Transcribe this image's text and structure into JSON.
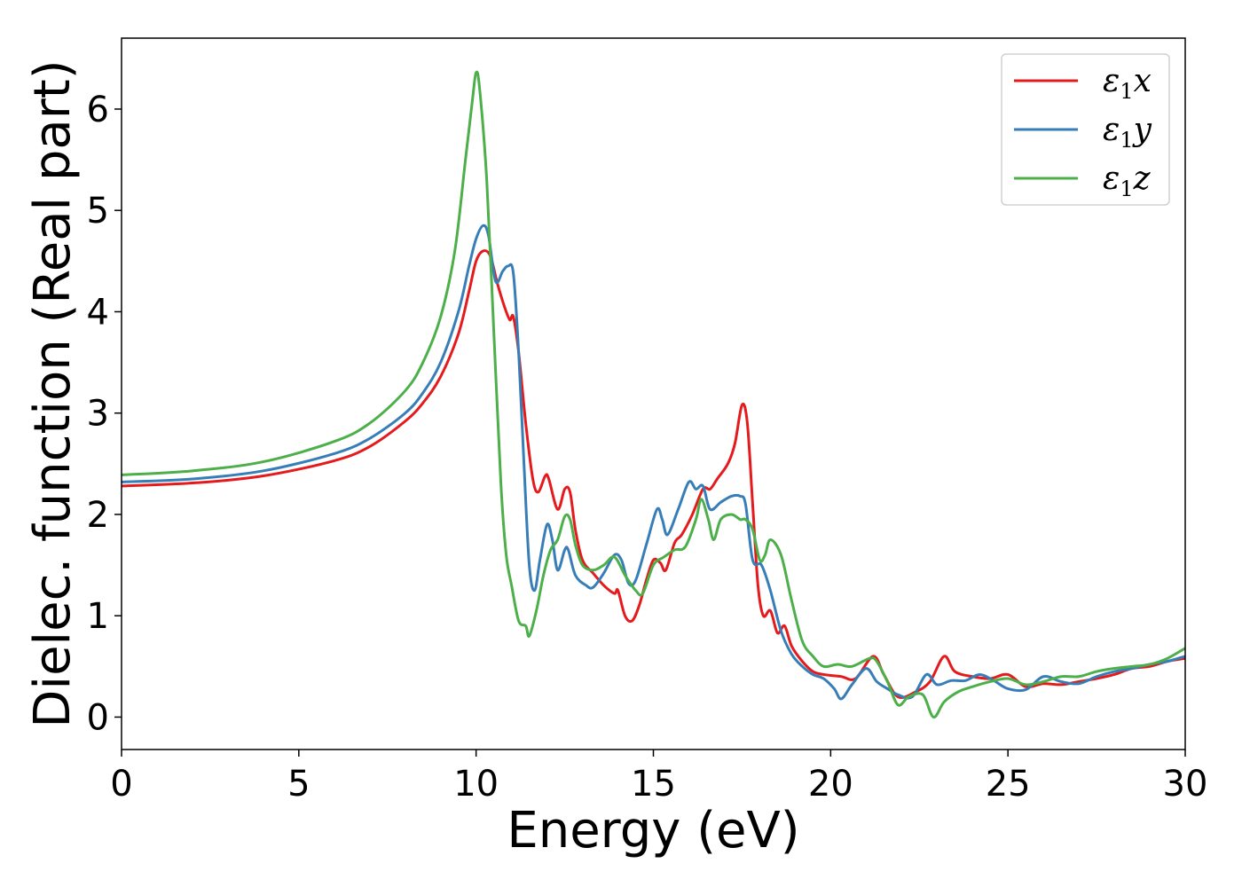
{
  "chart_data": {
    "type": "line",
    "xlabel": "Energy (eV)",
    "ylabel": "Dielec. function (Real part)",
    "xlim": [
      0,
      30
    ],
    "ylim": [
      -0.32,
      6.7
    ],
    "xticks": [
      0,
      5,
      10,
      15,
      20,
      25,
      30
    ],
    "yticks": [
      0,
      1,
      2,
      3,
      4,
      5,
      6
    ],
    "grid": false,
    "legend_position": "top-right",
    "series": [
      {
        "name": "ε1x",
        "legend": {
          "symbol": "ε",
          "sub": "1",
          "var": "x"
        },
        "color": "#e41a1c",
        "points": [
          [
            0,
            2.28
          ],
          [
            2,
            2.31
          ],
          [
            4,
            2.38
          ],
          [
            6,
            2.53
          ],
          [
            7,
            2.67
          ],
          [
            8,
            2.92
          ],
          [
            8.5,
            3.1
          ],
          [
            9,
            3.36
          ],
          [
            9.5,
            3.78
          ],
          [
            9.8,
            4.2
          ],
          [
            10,
            4.5
          ],
          [
            10.2,
            4.6
          ],
          [
            10.4,
            4.55
          ],
          [
            10.6,
            4.28
          ],
          [
            10.8,
            4.05
          ],
          [
            10.95,
            3.92
          ],
          [
            11.05,
            3.95
          ],
          [
            11.2,
            3.6
          ],
          [
            11.4,
            2.9
          ],
          [
            11.6,
            2.35
          ],
          [
            11.75,
            2.22
          ],
          [
            11.95,
            2.38
          ],
          [
            12.05,
            2.35
          ],
          [
            12.3,
            2.05
          ],
          [
            12.5,
            2.25
          ],
          [
            12.65,
            2.22
          ],
          [
            12.8,
            1.85
          ],
          [
            13,
            1.55
          ],
          [
            13.3,
            1.42
          ],
          [
            13.6,
            1.3
          ],
          [
            13.9,
            1.22
          ],
          [
            14,
            1.25
          ],
          [
            14.2,
            1.0
          ],
          [
            14.4,
            0.95
          ],
          [
            14.6,
            1.1
          ],
          [
            14.8,
            1.35
          ],
          [
            15,
            1.55
          ],
          [
            15.2,
            1.52
          ],
          [
            15.35,
            1.45
          ],
          [
            15.6,
            1.72
          ],
          [
            15.8,
            1.8
          ],
          [
            16.1,
            2.0
          ],
          [
            16.4,
            2.25
          ],
          [
            16.6,
            2.25
          ],
          [
            16.8,
            2.35
          ],
          [
            17.1,
            2.5
          ],
          [
            17.3,
            2.7
          ],
          [
            17.5,
            3.08
          ],
          [
            17.65,
            2.9
          ],
          [
            17.8,
            2.1
          ],
          [
            17.95,
            1.3
          ],
          [
            18.1,
            1.0
          ],
          [
            18.3,
            1.05
          ],
          [
            18.5,
            0.83
          ],
          [
            18.7,
            0.9
          ],
          [
            18.9,
            0.7
          ],
          [
            19.2,
            0.55
          ],
          [
            19.5,
            0.45
          ],
          [
            19.8,
            0.42
          ],
          [
            20.3,
            0.4
          ],
          [
            20.7,
            0.38
          ],
          [
            21.2,
            0.6
          ],
          [
            21.5,
            0.42
          ],
          [
            21.9,
            0.2
          ],
          [
            22.4,
            0.25
          ],
          [
            22.8,
            0.35
          ],
          [
            23.2,
            0.6
          ],
          [
            23.5,
            0.45
          ],
          [
            24,
            0.4
          ],
          [
            24.5,
            0.38
          ],
          [
            25,
            0.42
          ],
          [
            25.5,
            0.3
          ],
          [
            26,
            0.33
          ],
          [
            26.5,
            0.32
          ],
          [
            27,
            0.35
          ],
          [
            27.5,
            0.38
          ],
          [
            28,
            0.42
          ],
          [
            28.5,
            0.48
          ],
          [
            29,
            0.5
          ],
          [
            29.5,
            0.55
          ],
          [
            30,
            0.58
          ]
        ]
      },
      {
        "name": "ε1y",
        "legend": {
          "symbol": "ε",
          "sub": "1",
          "var": "y"
        },
        "color": "#377eb8",
        "points": [
          [
            0,
            2.32
          ],
          [
            2,
            2.35
          ],
          [
            4,
            2.43
          ],
          [
            6,
            2.6
          ],
          [
            7,
            2.75
          ],
          [
            8,
            3.0
          ],
          [
            8.5,
            3.2
          ],
          [
            9,
            3.5
          ],
          [
            9.5,
            4.0
          ],
          [
            9.8,
            4.45
          ],
          [
            10,
            4.72
          ],
          [
            10.2,
            4.85
          ],
          [
            10.35,
            4.75
          ],
          [
            10.55,
            4.3
          ],
          [
            10.75,
            4.4
          ],
          [
            10.9,
            4.45
          ],
          [
            11.05,
            4.38
          ],
          [
            11.2,
            3.6
          ],
          [
            11.35,
            2.5
          ],
          [
            11.5,
            1.5
          ],
          [
            11.65,
            1.25
          ],
          [
            11.8,
            1.55
          ],
          [
            12.0,
            1.9
          ],
          [
            12.15,
            1.75
          ],
          [
            12.3,
            1.45
          ],
          [
            12.5,
            1.65
          ],
          [
            12.6,
            1.65
          ],
          [
            12.8,
            1.4
          ],
          [
            13.1,
            1.3
          ],
          [
            13.3,
            1.28
          ],
          [
            13.6,
            1.42
          ],
          [
            13.9,
            1.6
          ],
          [
            14.1,
            1.55
          ],
          [
            14.3,
            1.32
          ],
          [
            14.5,
            1.35
          ],
          [
            14.8,
            1.7
          ],
          [
            15.1,
            2.05
          ],
          [
            15.25,
            1.95
          ],
          [
            15.4,
            1.8
          ],
          [
            15.7,
            2.05
          ],
          [
            16,
            2.32
          ],
          [
            16.2,
            2.25
          ],
          [
            16.4,
            2.28
          ],
          [
            16.6,
            2.05
          ],
          [
            16.9,
            2.12
          ],
          [
            17.2,
            2.18
          ],
          [
            17.45,
            2.18
          ],
          [
            17.6,
            2.1
          ],
          [
            17.8,
            1.55
          ],
          [
            18.05,
            1.5
          ],
          [
            18.3,
            1.25
          ],
          [
            18.6,
            0.85
          ],
          [
            18.9,
            0.62
          ],
          [
            19.2,
            0.5
          ],
          [
            19.5,
            0.42
          ],
          [
            19.8,
            0.38
          ],
          [
            20.1,
            0.28
          ],
          [
            20.3,
            0.18
          ],
          [
            20.6,
            0.32
          ],
          [
            21,
            0.48
          ],
          [
            21.3,
            0.35
          ],
          [
            21.6,
            0.28
          ],
          [
            21.9,
            0.22
          ],
          [
            22.3,
            0.2
          ],
          [
            22.7,
            0.42
          ],
          [
            23,
            0.32
          ],
          [
            23.4,
            0.36
          ],
          [
            23.8,
            0.36
          ],
          [
            24.2,
            0.42
          ],
          [
            24.6,
            0.36
          ],
          [
            25,
            0.28
          ],
          [
            25.5,
            0.27
          ],
          [
            26,
            0.4
          ],
          [
            26.5,
            0.35
          ],
          [
            27,
            0.33
          ],
          [
            27.5,
            0.4
          ],
          [
            28,
            0.45
          ],
          [
            28.5,
            0.48
          ],
          [
            29,
            0.52
          ],
          [
            29.5,
            0.55
          ],
          [
            30,
            0.6
          ]
        ]
      },
      {
        "name": "ε1z",
        "legend": {
          "symbol": "ε",
          "sub": "1",
          "var": "z"
        },
        "color": "#4daf4a",
        "points": [
          [
            0,
            2.39
          ],
          [
            2,
            2.43
          ],
          [
            4,
            2.52
          ],
          [
            6,
            2.72
          ],
          [
            7,
            2.9
          ],
          [
            8,
            3.22
          ],
          [
            8.5,
            3.5
          ],
          [
            9,
            3.95
          ],
          [
            9.4,
            4.6
          ],
          [
            9.7,
            5.5
          ],
          [
            9.9,
            6.1
          ],
          [
            10.0,
            6.36
          ],
          [
            10.1,
            6.2
          ],
          [
            10.3,
            5.3
          ],
          [
            10.5,
            3.8
          ],
          [
            10.7,
            2.3
          ],
          [
            10.85,
            1.6
          ],
          [
            11.0,
            1.3
          ],
          [
            11.2,
            0.95
          ],
          [
            11.4,
            0.9
          ],
          [
            11.5,
            0.8
          ],
          [
            11.7,
            1.05
          ],
          [
            11.9,
            1.4
          ],
          [
            12.1,
            1.65
          ],
          [
            12.3,
            1.75
          ],
          [
            12.5,
            1.98
          ],
          [
            12.65,
            1.95
          ],
          [
            12.8,
            1.7
          ],
          [
            13,
            1.5
          ],
          [
            13.3,
            1.45
          ],
          [
            13.6,
            1.5
          ],
          [
            13.9,
            1.58
          ],
          [
            14.2,
            1.4
          ],
          [
            14.5,
            1.25
          ],
          [
            14.7,
            1.22
          ],
          [
            15,
            1.5
          ],
          [
            15.3,
            1.58
          ],
          [
            15.6,
            1.65
          ],
          [
            15.9,
            1.68
          ],
          [
            16.2,
            1.95
          ],
          [
            16.35,
            2.15
          ],
          [
            16.55,
            1.95
          ],
          [
            16.7,
            1.75
          ],
          [
            16.9,
            1.95
          ],
          [
            17.2,
            2.0
          ],
          [
            17.45,
            1.95
          ],
          [
            17.6,
            1.95
          ],
          [
            17.8,
            1.85
          ],
          [
            18.0,
            1.55
          ],
          [
            18.15,
            1.6
          ],
          [
            18.3,
            1.75
          ],
          [
            18.6,
            1.6
          ],
          [
            18.9,
            1.15
          ],
          [
            19.2,
            0.75
          ],
          [
            19.5,
            0.6
          ],
          [
            19.8,
            0.5
          ],
          [
            20.2,
            0.52
          ],
          [
            20.6,
            0.5
          ],
          [
            21.1,
            0.58
          ],
          [
            21.3,
            0.55
          ],
          [
            21.6,
            0.35
          ],
          [
            21.9,
            0.12
          ],
          [
            22.2,
            0.2
          ],
          [
            22.6,
            0.22
          ],
          [
            22.9,
            0.0
          ],
          [
            23.2,
            0.15
          ],
          [
            23.6,
            0.25
          ],
          [
            24,
            0.3
          ],
          [
            24.5,
            0.35
          ],
          [
            25,
            0.38
          ],
          [
            25.5,
            0.32
          ],
          [
            26,
            0.35
          ],
          [
            26.5,
            0.4
          ],
          [
            27,
            0.4
          ],
          [
            27.5,
            0.45
          ],
          [
            28,
            0.48
          ],
          [
            28.5,
            0.5
          ],
          [
            29,
            0.52
          ],
          [
            29.5,
            0.58
          ],
          [
            30,
            0.68
          ]
        ]
      }
    ]
  }
}
